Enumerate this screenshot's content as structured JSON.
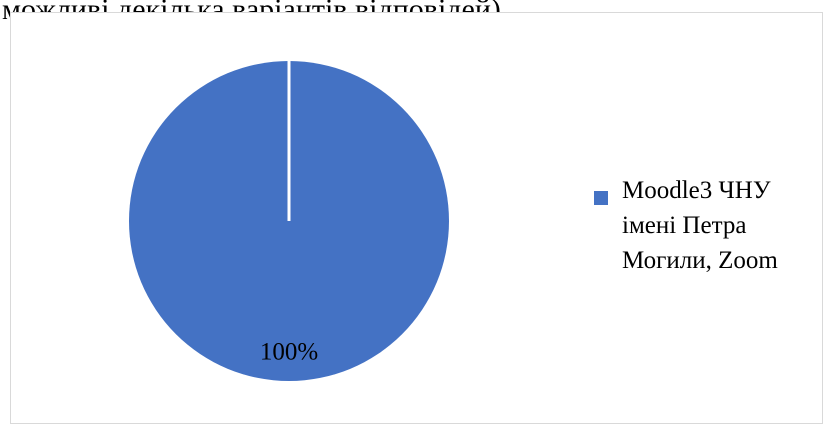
{
  "title": "можливі декілька варіантів відповідей)",
  "chart_data": {
    "type": "pie",
    "slices": [
      {
        "label": "Moodle3 ЧНУ імені Петра Могили, Zoom",
        "value": 100,
        "data_label": "100%",
        "color": "#4472c4"
      }
    ],
    "legend": {
      "position": "right",
      "entries": [
        "Moodle3 ЧНУ імені Петра Могили, Zoom"
      ]
    }
  }
}
